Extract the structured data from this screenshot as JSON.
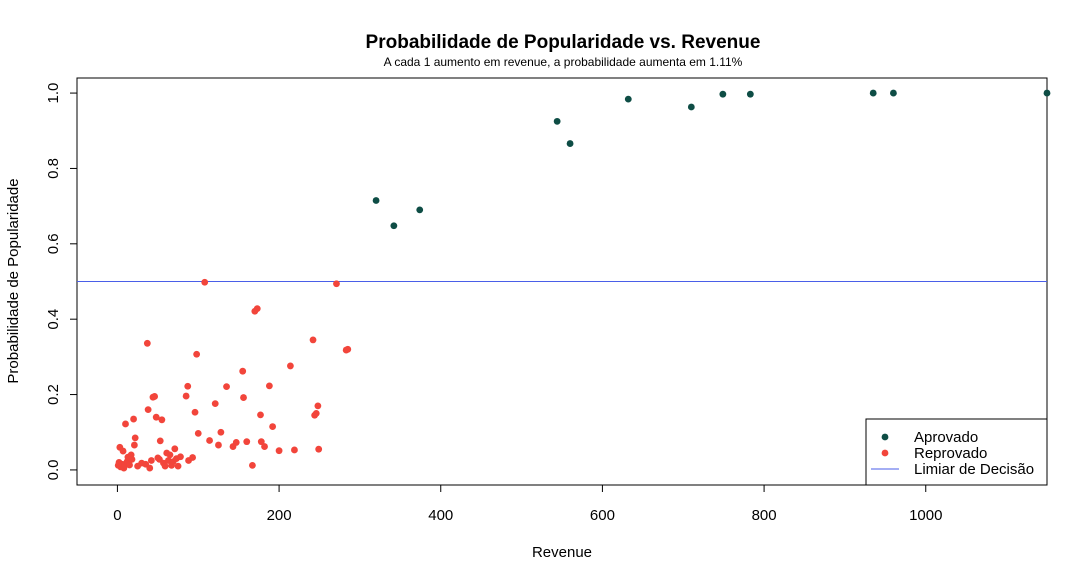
{
  "chart_data": {
    "type": "scatter",
    "title": "Probabilidade de Popularidade vs. Revenue",
    "subtitle": "A cada 1 aumento em revenue, a probabilidade aumenta em 1.11%",
    "xlabel": "Revenue",
    "ylabel": "Probabilidade de Popularidade",
    "xlim": [
      -50,
      1150
    ],
    "ylim": [
      -0.04,
      1.04
    ],
    "x_ticks": [
      0,
      200,
      400,
      600,
      800,
      1000
    ],
    "y_ticks": [
      0.0,
      0.2,
      0.4,
      0.6,
      0.8,
      1.0
    ],
    "x_tick_labels": [
      "0",
      "200",
      "400",
      "600",
      "800",
      "1000"
    ],
    "y_tick_labels": [
      "0.0",
      "0.2",
      "0.4",
      "0.6",
      "0.8",
      "1.0"
    ],
    "grid": false,
    "legend_position": "bottom-right",
    "reference_line": {
      "y": 0.5,
      "name": "Limiar de Decisão",
      "color": "#4a5ee8"
    },
    "series": [
      {
        "name": "Aprovado",
        "color": "#0e4d45",
        "points": [
          [
            320,
            0.715
          ],
          [
            342,
            0.648
          ],
          [
            374,
            0.69
          ],
          [
            544,
            0.925
          ],
          [
            560,
            0.866
          ],
          [
            632,
            0.984
          ],
          [
            710,
            0.963
          ],
          [
            749,
            0.997
          ],
          [
            783,
            0.997
          ],
          [
            935,
            1.0
          ],
          [
            960,
            1.0
          ],
          [
            1150,
            1.0
          ]
        ]
      },
      {
        "name": "Reprovado",
        "color": "#f2453b",
        "points": [
          [
            1,
            0.012
          ],
          [
            2,
            0.02
          ],
          [
            3,
            0.06
          ],
          [
            4,
            0.008
          ],
          [
            6,
            0.015
          ],
          [
            7,
            0.05
          ],
          [
            8,
            0.005
          ],
          [
            9,
            0.012
          ],
          [
            10,
            0.122
          ],
          [
            12,
            0.022
          ],
          [
            13,
            0.034
          ],
          [
            15,
            0.013
          ],
          [
            17,
            0.04
          ],
          [
            18,
            0.028
          ],
          [
            20,
            0.135
          ],
          [
            21,
            0.066
          ],
          [
            22,
            0.085
          ],
          [
            25,
            0.01
          ],
          [
            30,
            0.018
          ],
          [
            35,
            0.015
          ],
          [
            37,
            0.336
          ],
          [
            38,
            0.16
          ],
          [
            40,
            0.005
          ],
          [
            42,
            0.025
          ],
          [
            44,
            0.193
          ],
          [
            46,
            0.195
          ],
          [
            48,
            0.14
          ],
          [
            50,
            0.032
          ],
          [
            52,
            0.028
          ],
          [
            53,
            0.077
          ],
          [
            55,
            0.133
          ],
          [
            57,
            0.018
          ],
          [
            59,
            0.01
          ],
          [
            61,
            0.045
          ],
          [
            63,
            0.025
          ],
          [
            65,
            0.04
          ],
          [
            67,
            0.012
          ],
          [
            69,
            0.022
          ],
          [
            71,
            0.056
          ],
          [
            73,
            0.03
          ],
          [
            75,
            0.01
          ],
          [
            78,
            0.035
          ],
          [
            85,
            0.196
          ],
          [
            87,
            0.222
          ],
          [
            88,
            0.025
          ],
          [
            93,
            0.033
          ],
          [
            96,
            0.153
          ],
          [
            98,
            0.307
          ],
          [
            100,
            0.097
          ],
          [
            108,
            0.498
          ],
          [
            114,
            0.078
          ],
          [
            121,
            0.176
          ],
          [
            125,
            0.066
          ],
          [
            128,
            0.1
          ],
          [
            135,
            0.221
          ],
          [
            143,
            0.062
          ],
          [
            147,
            0.073
          ],
          [
            156,
            0.192
          ],
          [
            155,
            0.262
          ],
          [
            160,
            0.075
          ],
          [
            167,
            0.012
          ],
          [
            170,
            0.421
          ],
          [
            173,
            0.428
          ],
          [
            177,
            0.146
          ],
          [
            178,
            0.075
          ],
          [
            182,
            0.062
          ],
          [
            188,
            0.223
          ],
          [
            192,
            0.115
          ],
          [
            200,
            0.051
          ],
          [
            214,
            0.276
          ],
          [
            219,
            0.053
          ],
          [
            242,
            0.345
          ],
          [
            244,
            0.145
          ],
          [
            246,
            0.15
          ],
          [
            248,
            0.17
          ],
          [
            249,
            0.055
          ],
          [
            271,
            0.494
          ],
          [
            283,
            0.318
          ],
          [
            285,
            0.32
          ]
        ]
      }
    ]
  }
}
